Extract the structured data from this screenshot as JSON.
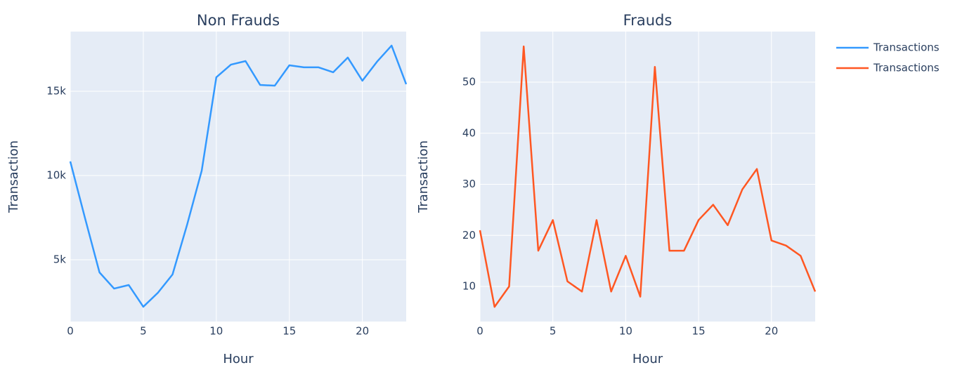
{
  "chart_data": [
    {
      "type": "line",
      "title": "Non Frauds",
      "x_label": "Hour",
      "y_label": "Transaction",
      "x": [
        0,
        1,
        2,
        3,
        4,
        5,
        6,
        7,
        8,
        9,
        10,
        11,
        12,
        13,
        14,
        15,
        16,
        17,
        18,
        19,
        20,
        21,
        22,
        23
      ],
      "series": [
        {
          "name": "Transactions",
          "color": "#3399ff",
          "values": [
            10833,
            7500,
            4250,
            3290,
            3500,
            2210,
            3040,
            4125,
            7080,
            10290,
            15830,
            16580,
            16790,
            15375,
            15330,
            16540,
            16420,
            16420,
            16125,
            17000,
            15625,
            16750,
            17710,
            15420
          ]
        }
      ],
      "xlim": [
        0,
        23
      ],
      "ylim": [
        1333,
        18540
      ],
      "xticks": [
        0,
        5,
        10,
        15,
        20
      ],
      "yticks": [
        {
          "value": 5000,
          "label": "5k"
        },
        {
          "value": 10000,
          "label": "10k"
        },
        {
          "value": 15000,
          "label": "15k"
        }
      ],
      "grid": true
    },
    {
      "type": "line",
      "title": "Frauds",
      "x_label": "Hour",
      "y_label": "Transaction",
      "x": [
        0,
        1,
        2,
        3,
        4,
        5,
        6,
        7,
        8,
        9,
        10,
        11,
        12,
        13,
        14,
        15,
        16,
        17,
        18,
        19,
        20,
        21,
        22,
        23
      ],
      "series": [
        {
          "name": "Transactions",
          "color": "#ff5722",
          "values": [
            21,
            6,
            10,
            57,
            17,
            23,
            11,
            9,
            23,
            9,
            16,
            8,
            53,
            17,
            17,
            23,
            26,
            22,
            29,
            33,
            19,
            18,
            16,
            9
          ]
        }
      ],
      "xlim": [
        0,
        23
      ],
      "ylim": [
        3.13,
        59.9
      ],
      "xticks": [
        0,
        5,
        10,
        15,
        20
      ],
      "yticks": [
        10,
        20,
        30,
        40,
        50
      ],
      "grid": true
    }
  ]
}
